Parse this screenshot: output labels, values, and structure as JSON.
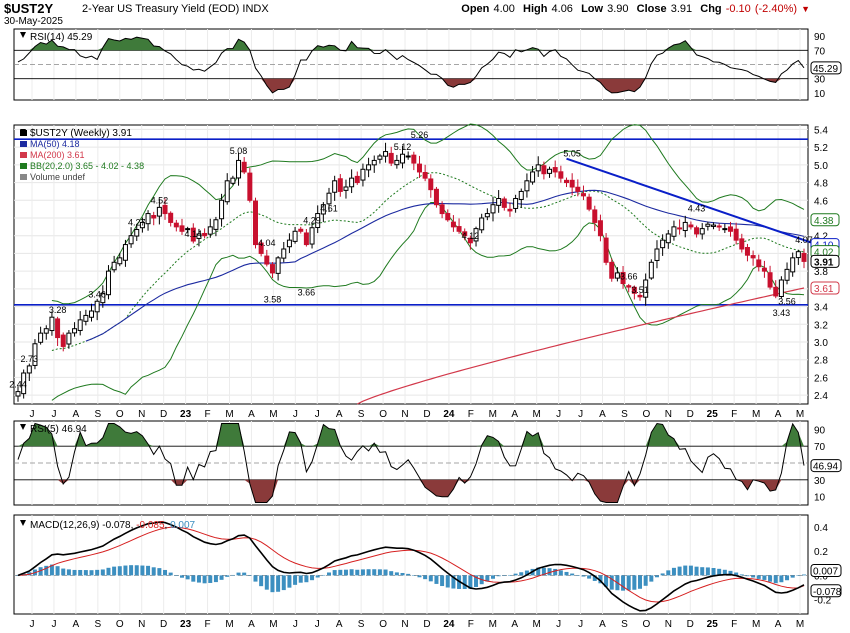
{
  "header": {
    "symbol": "$UST2Y",
    "description": "2-Year US Treasury Yield (EOD)",
    "exchange": "INDX",
    "date": "30-May-2025",
    "open_label": "Open",
    "open": "4.00",
    "high_label": "High",
    "high": "4.06",
    "low_label": "Low",
    "low": "3.90",
    "close_label": "Close",
    "close": "3.91",
    "chg_label": "Chg",
    "chg": "-0.10 (-2.40%)"
  },
  "colors": {
    "up": "#000000",
    "down": "#c8102e",
    "ma50": "#1c2aa0",
    "ma200": "#d2384a",
    "bb": "#1f7a1f",
    "trend": "#0a1fc8",
    "support": "#0a1fc8",
    "rsi_fill_high": "#3f7a3a",
    "rsi_fill_low": "#8a3a3a",
    "macd_line": "#000000",
    "signal": "#d62020",
    "hist": "#3c8fc0"
  },
  "rsi14_panel": {
    "label": "RSI(14) 45.29",
    "current_value_label": "45.29",
    "y_ticks": [
      "90",
      "70",
      "50",
      "30",
      "10"
    ]
  },
  "price_panel": {
    "legend_title": "$UST2Y (Weekly) 3.91",
    "legend_ma50": "MA(50) 4.18",
    "legend_ma200": "MA(200) 3.61",
    "legend_bb": "BB(20,2.0) 3.65 - 4.02 - 4.38",
    "legend_volume": "Volume undef",
    "y_ticks": [
      "5.4",
      "5.2",
      "5.0",
      "4.8",
      "4.6",
      "4.4",
      "4.2",
      "4.0",
      "3.8",
      "3.6",
      "3.4",
      "3.2",
      "3.0",
      "2.8",
      "2.6",
      "2.4"
    ],
    "right_badges": [
      {
        "text": "4.38",
        "color": "#1f7a1f"
      },
      {
        "text": "4.10",
        "color": "#0a1fc8"
      },
      {
        "text": "4.02",
        "color": "#1f7a1f"
      },
      {
        "text": "3.91",
        "color": "#000000"
      },
      {
        "text": "3.61",
        "color": "#d2384a"
      }
    ],
    "annotations": [
      "2.44",
      "3.46",
      "3.28",
      "2.73",
      "4.27",
      "4.52",
      "4.14",
      "5.08",
      "4.04",
      "4.29",
      "3.58",
      "3.66",
      "5.12",
      "4.61",
      "5.26",
      "4.12",
      "5.05",
      "3.66",
      "3.51",
      "4.43",
      "4.07",
      "3.43",
      "3.56"
    ]
  },
  "rsi5_panel": {
    "label": "RSI(5) 46.94",
    "current_value_label": "46.94",
    "y_ticks": [
      "90",
      "70",
      "50",
      "30",
      "10"
    ]
  },
  "macd_panel": {
    "label_prefix": "MACD(12,26,9)",
    "macd_value": "-0.078",
    "signal_value": "-0.085",
    "hist_value": "0.007",
    "y_ticks": [
      "0.4",
      "0.2",
      "0.0",
      "-0.2"
    ],
    "right_badges": [
      "0.007",
      "-0.078"
    ]
  },
  "x_axis": {
    "labels": [
      "J",
      "J",
      "A",
      "S",
      "O",
      "N",
      "D",
      "23",
      "F",
      "M",
      "A",
      "M",
      "J",
      "J",
      "A",
      "S",
      "O",
      "N",
      "D",
      "24",
      "F",
      "M",
      "A",
      "M",
      "J",
      "J",
      "A",
      "S",
      "O",
      "N",
      "D",
      "25",
      "F",
      "M",
      "A",
      "M"
    ]
  },
  "chart_data": {
    "type": "candlestick",
    "title": "$UST2Y 2-Year US Treasury Yield (EOD)",
    "period": "Weekly",
    "ylim": [
      2.3,
      5.45
    ],
    "support_level": 3.42,
    "resistance_level": 5.29,
    "weekly_close": [
      2.44,
      2.65,
      2.73,
      2.98,
      3.1,
      3.15,
      3.28,
      3.05,
      2.95,
      3.1,
      3.15,
      3.25,
      3.3,
      3.35,
      3.46,
      3.55,
      3.8,
      3.9,
      3.95,
      4.1,
      4.2,
      4.27,
      4.35,
      4.45,
      4.4,
      4.52,
      4.45,
      4.35,
      4.3,
      4.25,
      4.28,
      4.14,
      4.22,
      4.2,
      4.3,
      4.38,
      4.6,
      4.82,
      4.85,
      5.05,
      4.92,
      4.6,
      4.1,
      4.0,
      3.88,
      3.78,
      3.95,
      4.05,
      4.15,
      4.25,
      4.25,
      4.1,
      4.29,
      4.45,
      4.55,
      4.68,
      4.82,
      4.7,
      4.75,
      4.85,
      4.8,
      4.95,
      5.0,
      5.05,
      5.1,
      5.15,
      5.02,
      5.05,
      5.12,
      5.1,
      5.02,
      4.92,
      4.85,
      4.72,
      4.55,
      4.45,
      4.38,
      4.3,
      4.25,
      4.2,
      4.12,
      4.28,
      4.4,
      4.45,
      4.55,
      4.62,
      4.52,
      4.48,
      4.62,
      4.7,
      4.82,
      4.92,
      5.0,
      4.9,
      4.95,
      4.92,
      4.85,
      4.8,
      4.75,
      4.7,
      4.65,
      4.5,
      4.35,
      4.2,
      3.9,
      3.72,
      3.78,
      3.66,
      3.62,
      3.55,
      3.51,
      3.7,
      3.9,
      4.05,
      4.15,
      4.22,
      4.3,
      4.28,
      4.35,
      4.3,
      4.22,
      4.28,
      4.33,
      4.32,
      4.3,
      4.28,
      4.25,
      4.15,
      4.05,
      3.98,
      3.95,
      3.85,
      3.8,
      3.62,
      3.52,
      3.7,
      3.82,
      3.95,
      4.02,
      3.91
    ],
    "annotated_values": [
      2.44,
      3.46,
      3.28,
      2.73,
      4.27,
      4.52,
      4.14,
      5.08,
      4.04,
      4.29,
      3.58,
      3.66,
      5.12,
      4.61,
      5.26,
      4.12,
      5.05,
      3.66,
      3.51,
      4.43,
      4.07,
      3.43,
      3.56
    ],
    "last": {
      "open": 4.0,
      "high": 4.06,
      "low": 3.9,
      "close": 3.91
    },
    "ma50_last": 4.18,
    "ma200_last": 3.61,
    "bb_last": {
      "lower": 3.65,
      "mid": 4.02,
      "upper": 4.38
    },
    "rsi14_last": 45.29,
    "rsi5_last": 46.94,
    "macd_last": {
      "macd": -0.078,
      "signal": -0.085,
      "hist": 0.007
    }
  }
}
